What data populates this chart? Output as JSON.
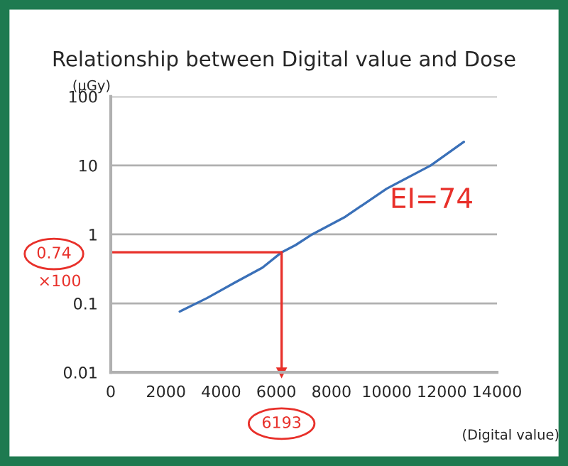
{
  "chart_data": {
    "type": "line",
    "title": "Relationship between Digital value and Dose",
    "ylabel": "(μGy)",
    "xlabel": "(Digital value)",
    "x": [
      2500,
      3500,
      4500,
      5500,
      6193,
      6700,
      7300,
      8500,
      10000,
      11600,
      12800
    ],
    "series": [
      {
        "color": "#3a70b8",
        "values": [
          0.076,
          0.12,
          0.2,
          0.33,
          0.55,
          0.7,
          1.0,
          1.8,
          4.6,
          10,
          22
        ]
      }
    ],
    "log": "y",
    "xlim": [
      0,
      14000
    ],
    "xticks": [
      0,
      2000,
      4000,
      6000,
      8000,
      10000,
      12000,
      14000
    ],
    "ylim": [
      0.01,
      100
    ],
    "yticks": [
      0.01,
      0.1,
      1,
      10,
      100
    ],
    "grid": "y",
    "marker": "none",
    "line_style": "solid",
    "ref_lines": [
      {
        "axis": "y",
        "value": 0.55,
        "color": "#e8302a"
      },
      {
        "axis": "x",
        "value": 6193,
        "label": "6193",
        "color": "#e8302a"
      }
    ],
    "annotations": [
      "0.74",
      "×100",
      "EI=74"
    ]
  }
}
